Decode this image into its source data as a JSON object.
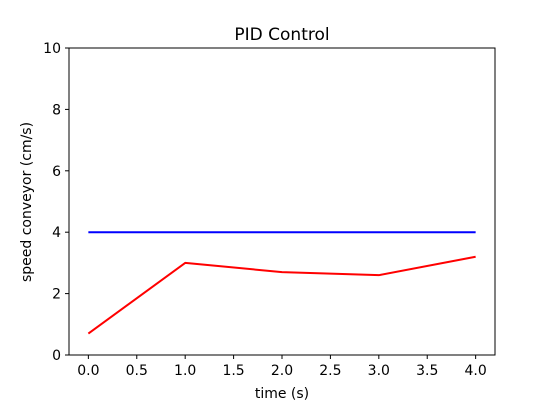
{
  "chart_data": {
    "type": "line",
    "title": "PID Control",
    "xlabel": "time (s)",
    "ylabel": "speed conveyor (cm/s)",
    "xlim": [
      -0.2,
      4.2
    ],
    "ylim": [
      0,
      10
    ],
    "x": [
      0.0,
      1.0,
      2.0,
      3.0,
      4.0
    ],
    "xticks": [
      0.0,
      0.5,
      1.0,
      1.5,
      2.0,
      2.5,
      3.0,
      3.5,
      4.0
    ],
    "xtick_labels": [
      "0.0",
      "0.5",
      "1.0",
      "1.5",
      "2.0",
      "2.5",
      "3.0",
      "3.5",
      "4.0"
    ],
    "yticks": [
      0,
      2,
      4,
      6,
      8,
      10
    ],
    "ytick_labels": [
      "0",
      "2",
      "4",
      "6",
      "8",
      "10"
    ],
    "grid": false,
    "series": [
      {
        "color": "#0000ff",
        "values": [
          4.0,
          4.0,
          4.0,
          4.0,
          4.0
        ]
      },
      {
        "color": "#ff0000",
        "values": [
          0.7,
          3.0,
          2.7,
          2.6,
          3.2
        ]
      }
    ]
  }
}
